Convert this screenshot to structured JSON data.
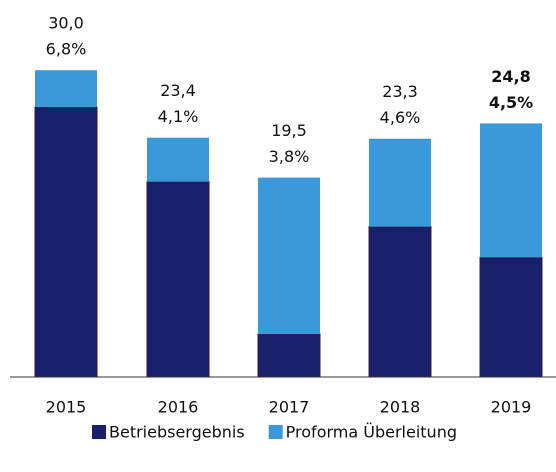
{
  "chart_data": {
    "type": "stacked-bar",
    "categories": [
      "2015",
      "2016",
      "2017",
      "2018",
      "2019"
    ],
    "series": [
      {
        "name": "Betriebsergebnis",
        "color": "#16206b",
        "values": [
          26.4,
          19.1,
          4.2,
          14.7,
          11.7
        ]
      },
      {
        "name": "Proforma Überleitung",
        "color": "#3a9ad9",
        "values": [
          3.6,
          4.3,
          15.3,
          8.6,
          13.1
        ]
      }
    ],
    "totals": [
      30.0,
      23.4,
      19.5,
      23.3,
      24.8
    ],
    "total_labels": [
      "30,0",
      "23,4",
      "19,5",
      "23,3",
      "24,8"
    ],
    "percents": [
      6.8,
      4.1,
      3.8,
      4.6,
      4.5
    ],
    "percent_labels": [
      "6,8%",
      "4,1%",
      "3,8%",
      "4,6%",
      "4,5%"
    ],
    "ylim": [
      0,
      31
    ],
    "legend": "bottom"
  }
}
